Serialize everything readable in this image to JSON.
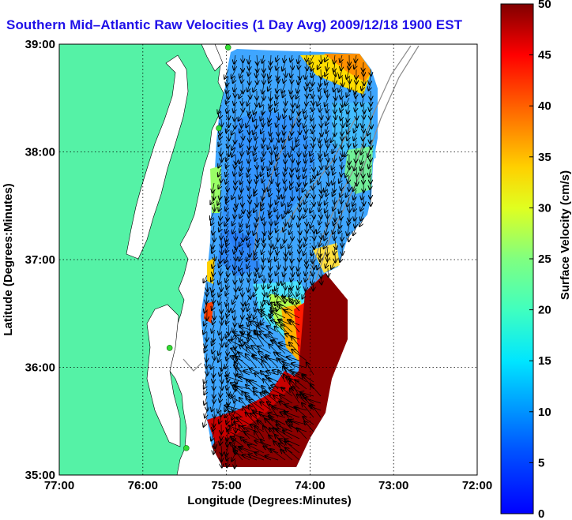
{
  "title": "Southern Mid–Atlantic Raw Velocities (1 Day Avg) 2009/12/18 1900 EST",
  "axes": {
    "x_label": "Longitude (Degrees:Minutes)",
    "y_label": "Latitude (Degrees:Minutes)",
    "x_ticks": [
      "77:00",
      "76:00",
      "75:00",
      "74:00",
      "73:00",
      "72:00"
    ],
    "y_ticks": [
      "39:00",
      "38:00",
      "37:00",
      "36:00",
      "35:00"
    ]
  },
  "colorbar": {
    "label": "Surface Velocity (cm/s)",
    "ticks": [
      "50",
      "45",
      "40",
      "35",
      "30",
      "25",
      "20",
      "15",
      "10",
      "5",
      "0"
    ],
    "min": 0,
    "max": 50
  },
  "colors": {
    "land": "#55f2a6",
    "title": "#1f10e8",
    "stations": "#33dd33"
  },
  "map_extent": {
    "lon": [
      -77,
      -72
    ],
    "lat": [
      35,
      39
    ]
  },
  "stations": [
    {
      "lon": -74.98,
      "lat": 38.97
    },
    {
      "lon": -75.09,
      "lat": 38.22
    },
    {
      "lon": -75.68,
      "lat": 36.18
    },
    {
      "lon": -75.48,
      "lat": 35.25
    }
  ]
}
